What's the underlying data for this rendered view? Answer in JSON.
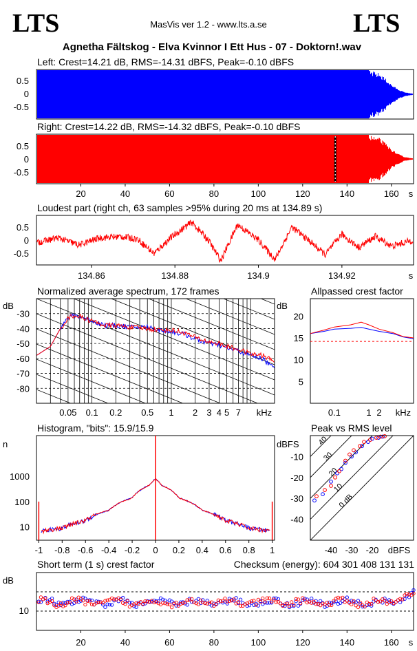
{
  "header": {
    "logo_left": "LTS",
    "logo_right": "LTS",
    "app_title": "MasVis ver 1.2 - www.lts.a.se",
    "track_title": "Agnetha Fältskog - Elva Kvinnor I Ett Hus - 07 - Doktorn!.wav"
  },
  "colors": {
    "left": "#0000ff",
    "right": "#ff0000"
  },
  "chart_data": [
    {
      "id": "left-waveform",
      "type": "area",
      "title": "Left: Crest=14.21 dB, RMS=-14.31 dBFS, Peak=-0.10 dBFS",
      "yticks": [
        "0.5",
        "0",
        "-0.5"
      ],
      "ylim": [
        -0.9,
        0.9
      ],
      "xlim": [
        0,
        170
      ],
      "envelope": {
        "x": [
          0,
          150,
          155,
          158,
          160,
          163,
          166,
          170
        ],
        "amp": [
          0.9,
          0.9,
          0.78,
          0.55,
          0.38,
          0.2,
          0.08,
          0.02
        ]
      }
    },
    {
      "id": "right-waveform",
      "type": "area",
      "title": "Right: Crest=14.22 dB, RMS=-14.32 dBFS, Peak=-0.10 dBFS",
      "yticks": [
        "0.5",
        "0",
        "-0.5"
      ],
      "ylim": [
        -0.9,
        0.9
      ],
      "xlim": [
        0,
        170
      ],
      "xticks": [
        "20",
        "40",
        "60",
        "80",
        "100",
        "120",
        "140",
        "160"
      ],
      "xunit": "s",
      "marker_x": 134.89,
      "envelope": {
        "x": [
          0,
          150,
          155,
          158,
          160,
          163,
          166,
          170
        ],
        "amp": [
          0.9,
          0.9,
          0.78,
          0.55,
          0.38,
          0.2,
          0.08,
          0.02
        ]
      }
    },
    {
      "id": "loudest-part",
      "type": "line",
      "title": "Loudest part (right ch, 63 samples >95% during 20 ms at 134.89 s)",
      "yticks": [
        "0.5",
        "0",
        "-0.5"
      ],
      "xticks": [
        "134.86",
        "134.88",
        "134.9",
        "134.92"
      ],
      "xunit": "s",
      "xlim": [
        134.847,
        134.937
      ],
      "ylim": [
        -1,
        1
      ],
      "x": [
        134.847,
        134.852,
        134.857,
        134.862,
        134.867,
        134.871,
        134.875,
        134.879,
        134.884,
        134.888,
        134.891,
        134.895,
        134.9,
        134.904,
        134.908,
        134.912,
        134.916,
        134.92,
        134.924,
        134.928,
        134.932,
        134.937
      ],
      "y": [
        -0.1,
        0.1,
        -0.2,
        0.1,
        0.15,
        0.05,
        -0.55,
        0.1,
        0.75,
        0.0,
        -0.85,
        0.65,
        0.0,
        -0.8,
        0.55,
        0.0,
        -0.6,
        0.25,
        -0.3,
        0.15,
        -0.25,
        0.0
      ]
    },
    {
      "id": "spectrum",
      "type": "line",
      "title": "Normalized average spectrum, 172 frames",
      "ylabel": "dB",
      "yticks": [
        "-30",
        "-40",
        "-50",
        "-60",
        "-70",
        "-80"
      ],
      "xticks": [
        "0.05",
        "0.1",
        "0.2",
        "0.5",
        "1",
        "2",
        "3",
        "4",
        "5",
        "7"
      ],
      "xunit": "kHz",
      "xlim": [
        0.02,
        20
      ],
      "ylim": [
        -90,
        -20
      ],
      "x": [
        0.02,
        0.03,
        0.04,
        0.05,
        0.06,
        0.08,
        0.1,
        0.15,
        0.2,
        0.3,
        0.5,
        0.7,
        1,
        1.5,
        2,
        3,
        4,
        5,
        7,
        10,
        14,
        20
      ],
      "series": [
        {
          "values": [
            -58,
            -52,
            -40,
            -33,
            -31,
            -33,
            -35,
            -38,
            -38,
            -39,
            -39,
            -41,
            -42,
            -44,
            -47,
            -50,
            -51,
            -53,
            -55,
            -58,
            -60,
            -67
          ]
        },
        {
          "values": [
            -58,
            -52,
            -40,
            -33,
            -31,
            -33,
            -35,
            -38,
            -38,
            -39,
            -40,
            -41,
            -41,
            -43,
            -46,
            -49,
            -50,
            -52,
            -54,
            -57,
            -58,
            -62
          ]
        }
      ]
    },
    {
      "id": "allpassed-crest",
      "type": "line",
      "title": "Allpassed crest factor",
      "ylabel": "dB",
      "yticks": [
        "20",
        "15",
        "10",
        "5"
      ],
      "xticks": [
        "0.1",
        "1",
        "2"
      ],
      "xunit": "kHz",
      "xlim": [
        0.02,
        20
      ],
      "ylim": [
        0,
        24
      ],
      "reference": 14.2,
      "x": [
        0.02,
        0.05,
        0.1,
        0.3,
        0.6,
        1,
        2,
        5,
        10,
        20
      ],
      "series": [
        {
          "values": [
            16.0,
            16.5,
            17.0,
            17.2,
            17.4,
            17.0,
            16.5,
            16.0,
            15.2,
            14.8
          ]
        },
        {
          "values": [
            16.0,
            16.8,
            17.5,
            18.0,
            18.6,
            18.0,
            17.0,
            16.2,
            15.3,
            15.0
          ]
        }
      ]
    },
    {
      "id": "histogram",
      "type": "line",
      "title": "Histogram, \"bits\": 15.9/15.9",
      "ylabel": "n",
      "yticks": [
        "1000",
        "100",
        "10"
      ],
      "xticks": [
        "-1",
        "-0.8",
        "-0.6",
        "-0.4",
        "-0.2",
        "0",
        "0.2",
        "0.4",
        "0.6",
        "0.8",
        "1"
      ],
      "xlim": [
        -1.02,
        1.02
      ],
      "ylim": [
        3,
        40000
      ],
      "x": [
        -0.98,
        -0.8,
        -0.6,
        -0.4,
        -0.2,
        -0.05,
        0,
        0.05,
        0.2,
        0.4,
        0.6,
        0.8,
        0.98
      ],
      "y": [
        7,
        9,
        18,
        45,
        140,
        450,
        800,
        450,
        140,
        45,
        18,
        9,
        7
      ],
      "edge_peak": 100,
      "center_peak": 40000
    },
    {
      "id": "peak-vs-rms",
      "type": "scatter",
      "title": "Peak vs RMS level",
      "ylabel": "dBFS",
      "xunit": "dBFS",
      "yticks": [
        "-10",
        "-20",
        "-30",
        "-40"
      ],
      "xticks": [
        "-40",
        "-30",
        "-20"
      ],
      "xlim": [
        -50,
        0
      ],
      "ylim": [
        -50,
        0
      ],
      "diagonals": [
        "40",
        "30",
        "20",
        "10",
        "0 dB"
      ],
      "series": [
        {
          "x": [
            -48,
            -44,
            -40,
            -37,
            -35,
            -33,
            -30,
            -28,
            -25,
            -22,
            -20,
            -17,
            -15
          ],
          "y": [
            -31,
            -28,
            -22,
            -18,
            -16,
            -13,
            -10,
            -8,
            -5,
            -3,
            -1.5,
            -1,
            -0.5
          ]
        },
        {
          "x": [
            -47,
            -43,
            -40,
            -38,
            -36,
            -33,
            -31,
            -29,
            -26,
            -24,
            -21,
            -18,
            -16,
            -14
          ],
          "y": [
            -29,
            -26,
            -24,
            -20,
            -17,
            -12,
            -9,
            -7,
            -5,
            -3,
            -2,
            -1,
            -0.5,
            -0.3
          ]
        }
      ]
    },
    {
      "id": "short-term-crest",
      "type": "scatter",
      "title": "Short term (1 s) crest factor",
      "checksum": "Checksum (energy):   604 301 408 131 131",
      "ylabel": "dB",
      "yticks": [
        "10"
      ],
      "xticks": [
        "20",
        "40",
        "60",
        "80",
        "100",
        "120",
        "140",
        "160"
      ],
      "xunit": "s",
      "xlim": [
        0,
        170
      ],
      "ylim": [
        0,
        30
      ],
      "reference_lines": [
        10,
        20
      ]
    }
  ]
}
